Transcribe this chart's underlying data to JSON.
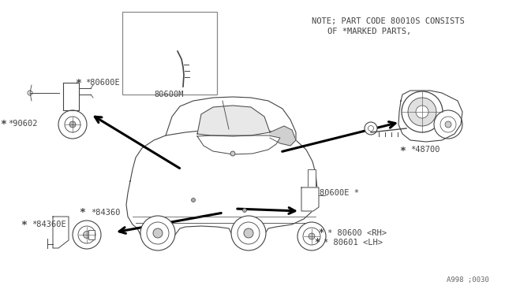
{
  "bg_color": "#ffffff",
  "line_color": "#444444",
  "note_line1": "NOTE; PART CODE 80010S CONSISTS",
  "note_line2": "OF ⁈43MARKED PARTS,",
  "note_line2_actual": "OF *MARKED PARTS,",
  "ref_num": "A998 ;0030",
  "label_80600E_top": "*80600E",
  "label_90602": "*90602",
  "label_80600M": "80600M",
  "label_48700": "*48700",
  "label_84360": "*84360",
  "label_84360E": "*84360E",
  "label_80600E_bot": "80600E *",
  "label_80600_RH": "* 80600 <RH>",
  "label_80601_LH": "* 80601 <LH>",
  "font_size": 7.5,
  "font_family": "monospace"
}
